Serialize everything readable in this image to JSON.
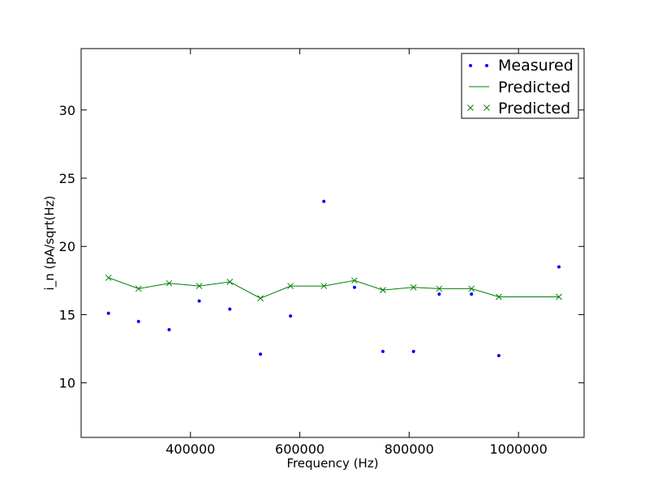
{
  "chart_data": {
    "type": "scatter",
    "xlabel": "Frequency (Hz)",
    "ylabel": "i_n (pA/sqrt(Hz)",
    "xlim": [
      200000,
      1120000
    ],
    "ylim": [
      6,
      34.5
    ],
    "xticks": [
      400000,
      600000,
      800000,
      1000000
    ],
    "xtick_labels": [
      "400000",
      "600000",
      "800000",
      "1000000"
    ],
    "yticks": [
      10,
      15,
      20,
      25,
      30
    ],
    "ytick_labels": [
      "10",
      "15",
      "20",
      "25",
      "30"
    ],
    "grid": false,
    "legend_position": "top-right",
    "series": [
      {
        "name": "Measured",
        "style": "dots",
        "color": "#0000ff",
        "x": [
          250000,
          305000,
          361000,
          416000,
          472000,
          528000,
          583000,
          644000,
          700000,
          752000,
          808000,
          855000,
          914000,
          964000,
          1074000
        ],
        "y": [
          15.1,
          14.5,
          13.9,
          16.0,
          15.4,
          12.1,
          14.9,
          23.3,
          17.0,
          12.3,
          12.3,
          16.5,
          16.5,
          12.0,
          18.5
        ]
      },
      {
        "name": "Predicted",
        "style": "line",
        "color": "#008000",
        "x": [
          250000,
          305000,
          361000,
          416000,
          472000,
          528000,
          583000,
          644000,
          700000,
          752000,
          808000,
          855000,
          914000,
          964000,
          1074000
        ],
        "y": [
          17.7,
          16.9,
          17.3,
          17.1,
          17.4,
          16.2,
          17.1,
          17.1,
          17.5,
          16.8,
          17.0,
          16.9,
          16.9,
          16.3,
          16.3
        ]
      },
      {
        "name": "Predicted",
        "style": "x-markers",
        "color": "#008000",
        "x": [
          250000,
          305000,
          361000,
          416000,
          472000,
          528000,
          583000,
          644000,
          700000,
          752000,
          808000,
          855000,
          914000,
          964000,
          1074000
        ],
        "y": [
          17.7,
          16.9,
          17.3,
          17.1,
          17.4,
          16.2,
          17.1,
          17.1,
          17.5,
          16.8,
          17.0,
          16.9,
          16.9,
          16.3,
          16.3
        ]
      }
    ]
  }
}
